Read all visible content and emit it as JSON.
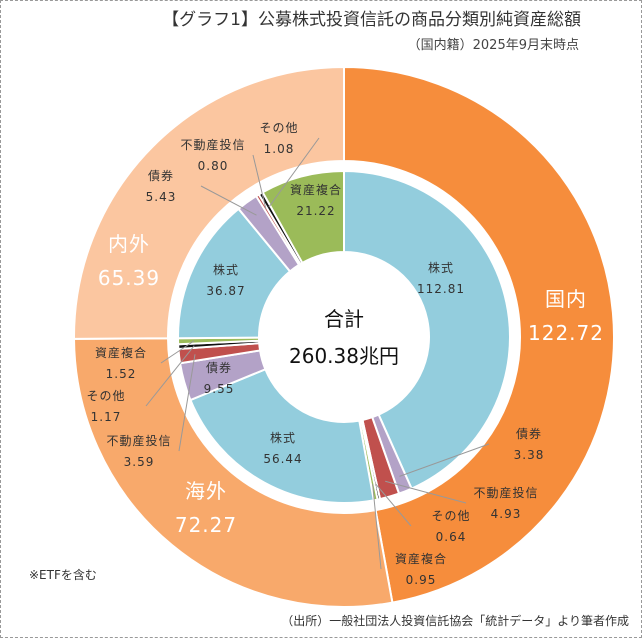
{
  "chart_data": {
    "type": "pie",
    "variant": "nested-donut",
    "title": "【グラフ1】公募株式投資信託の商品分類別純資産総額",
    "subtitle": "（国内籍）2025年9月末時点",
    "unit": "兆円",
    "total_label": "合計",
    "total_value": "260.38兆円",
    "outer": [
      {
        "name": "国内",
        "value": 122.72,
        "color": "#f68d3c"
      },
      {
        "name": "海外",
        "value": 72.27,
        "color": "#f8a96b"
      },
      {
        "name": "内外",
        "value": 65.39,
        "color": "#fbc6a0"
      }
    ],
    "inner": [
      {
        "group": "国内",
        "name": "株式",
        "value": 112.81,
        "color": "#93cddd"
      },
      {
        "group": "国内",
        "name": "債券",
        "value": 3.38,
        "color": "#b3a2c7"
      },
      {
        "group": "国内",
        "name": "不動産投信",
        "value": 4.93,
        "color": "#c0504d"
      },
      {
        "group": "国内",
        "name": "その他",
        "value": 0.64,
        "color": "#111111"
      },
      {
        "group": "国内",
        "name": "資産複合",
        "value": 0.95,
        "color": "#9bbb59"
      },
      {
        "group": "海外",
        "name": "株式",
        "value": 56.44,
        "color": "#93cddd"
      },
      {
        "group": "海外",
        "name": "債券",
        "value": 9.55,
        "color": "#b3a2c7"
      },
      {
        "group": "海外",
        "name": "不動産投信",
        "value": 3.59,
        "color": "#c0504d"
      },
      {
        "group": "海外",
        "name": "その他",
        "value": 1.17,
        "color": "#111111"
      },
      {
        "group": "海外",
        "name": "資産複合",
        "value": 1.52,
        "color": "#9bbb59"
      },
      {
        "group": "内外",
        "name": "株式",
        "value": 36.87,
        "color": "#93cddd"
      },
      {
        "group": "内外",
        "name": "債券",
        "value": 5.43,
        "color": "#b3a2c7"
      },
      {
        "group": "内外",
        "name": "不動産投信",
        "value": 0.8,
        "color": "#c0504d"
      },
      {
        "group": "内外",
        "name": "その他",
        "value": 1.08,
        "color": "#111111"
      },
      {
        "group": "内外",
        "name": "資産複合",
        "value": 21.22,
        "color": "#9bbb59"
      }
    ],
    "start_angle": "top, clockwise"
  },
  "notes": {
    "etf": "※ETFを含む",
    "source": "（出所）一般社団法人投資信託協会「統計データ」より筆者作成"
  }
}
